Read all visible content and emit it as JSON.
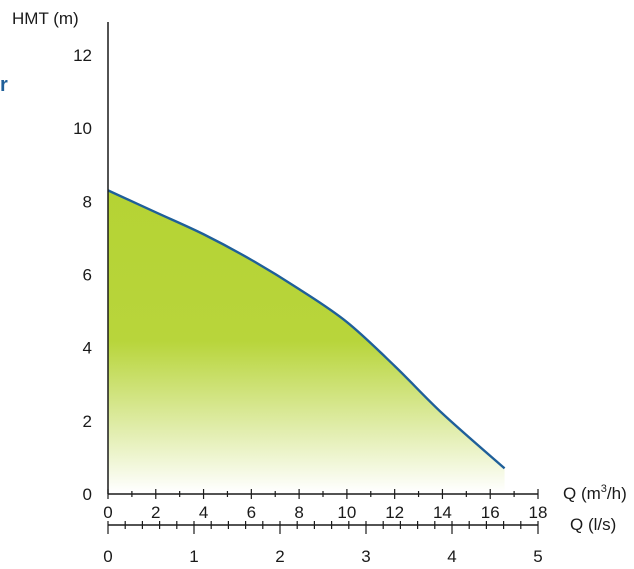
{
  "chart_data": {
    "type": "area",
    "ylabel": "HMT (m)",
    "xlabel": "Q (m³/h)",
    "xlabel_base": "Q (m",
    "xlabel_sup": "3",
    "xlabel_tail": "/h)",
    "x2label": "Q (l/s)",
    "ylim": [
      0,
      12
    ],
    "xlim": [
      0,
      18
    ],
    "x2lim": [
      0,
      5
    ],
    "yticks": [
      "0",
      "2",
      "4",
      "6",
      "8",
      "10",
      "12"
    ],
    "xticks": [
      "0",
      "2",
      "4",
      "6",
      "8",
      "10",
      "12",
      "14",
      "16",
      "18"
    ],
    "x2ticks": [
      "0",
      "1",
      "2",
      "3",
      "4",
      "5"
    ],
    "series": [
      {
        "x": [
          0,
          2,
          4,
          6,
          8,
          10,
          12,
          14,
          16.6
        ],
        "y": [
          8.3,
          7.7,
          7.1,
          6.4,
          5.6,
          4.7,
          3.5,
          2.2,
          0.7
        ]
      }
    ],
    "grid": false,
    "colors": {
      "line": "#1f5f99",
      "fill": "#b5d334",
      "axis": "#1a1a1a"
    }
  },
  "stray_text": "r"
}
